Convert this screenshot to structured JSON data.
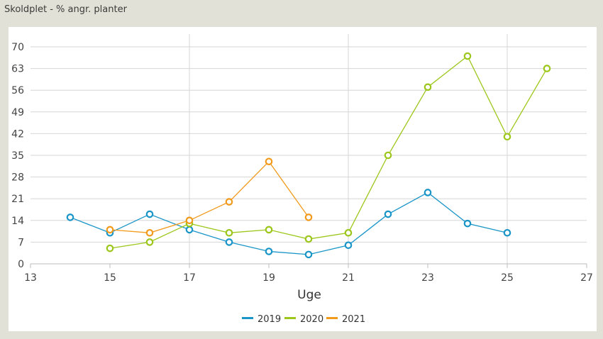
{
  "window": {
    "title": "Skoldplet - % angr. planter"
  },
  "chart_data": {
    "type": "line",
    "title": "",
    "xlabel": "Uge",
    "ylabel": "",
    "xlim": [
      13,
      27
    ],
    "ylim": [
      0,
      70
    ],
    "x_ticks": [
      13,
      15,
      17,
      19,
      21,
      23,
      25,
      27
    ],
    "y_ticks": [
      0,
      7,
      14,
      21,
      28,
      35,
      42,
      49,
      56,
      63,
      70
    ],
    "grid": {
      "horizontal": true,
      "vertical": true
    },
    "legend": "bottom-center",
    "series": [
      {
        "name": "2019",
        "color": "#1a95c8",
        "points": [
          [
            14,
            15
          ],
          [
            15,
            10
          ],
          [
            16,
            16
          ],
          [
            17,
            11
          ],
          [
            18,
            7
          ],
          [
            19,
            4
          ],
          [
            20,
            3
          ],
          [
            21,
            6
          ],
          [
            22,
            16
          ],
          [
            23,
            23
          ],
          [
            24,
            13
          ],
          [
            25,
            10
          ]
        ]
      },
      {
        "name": "2020",
        "color": "#9cc71a",
        "points": [
          [
            15,
            5
          ],
          [
            16,
            7
          ],
          [
            17,
            13
          ],
          [
            18,
            10
          ],
          [
            19,
            11
          ],
          [
            20,
            8
          ],
          [
            21,
            10
          ],
          [
            22,
            35
          ],
          [
            23,
            57
          ],
          [
            24,
            67
          ],
          [
            25,
            41
          ],
          [
            26,
            63
          ]
        ]
      },
      {
        "name": "2021",
        "color": "#f19a1c",
        "points": [
          [
            15,
            11
          ],
          [
            16,
            10
          ],
          [
            17,
            14
          ],
          [
            18,
            20
          ],
          [
            19,
            33
          ],
          [
            20,
            15
          ]
        ]
      }
    ]
  }
}
